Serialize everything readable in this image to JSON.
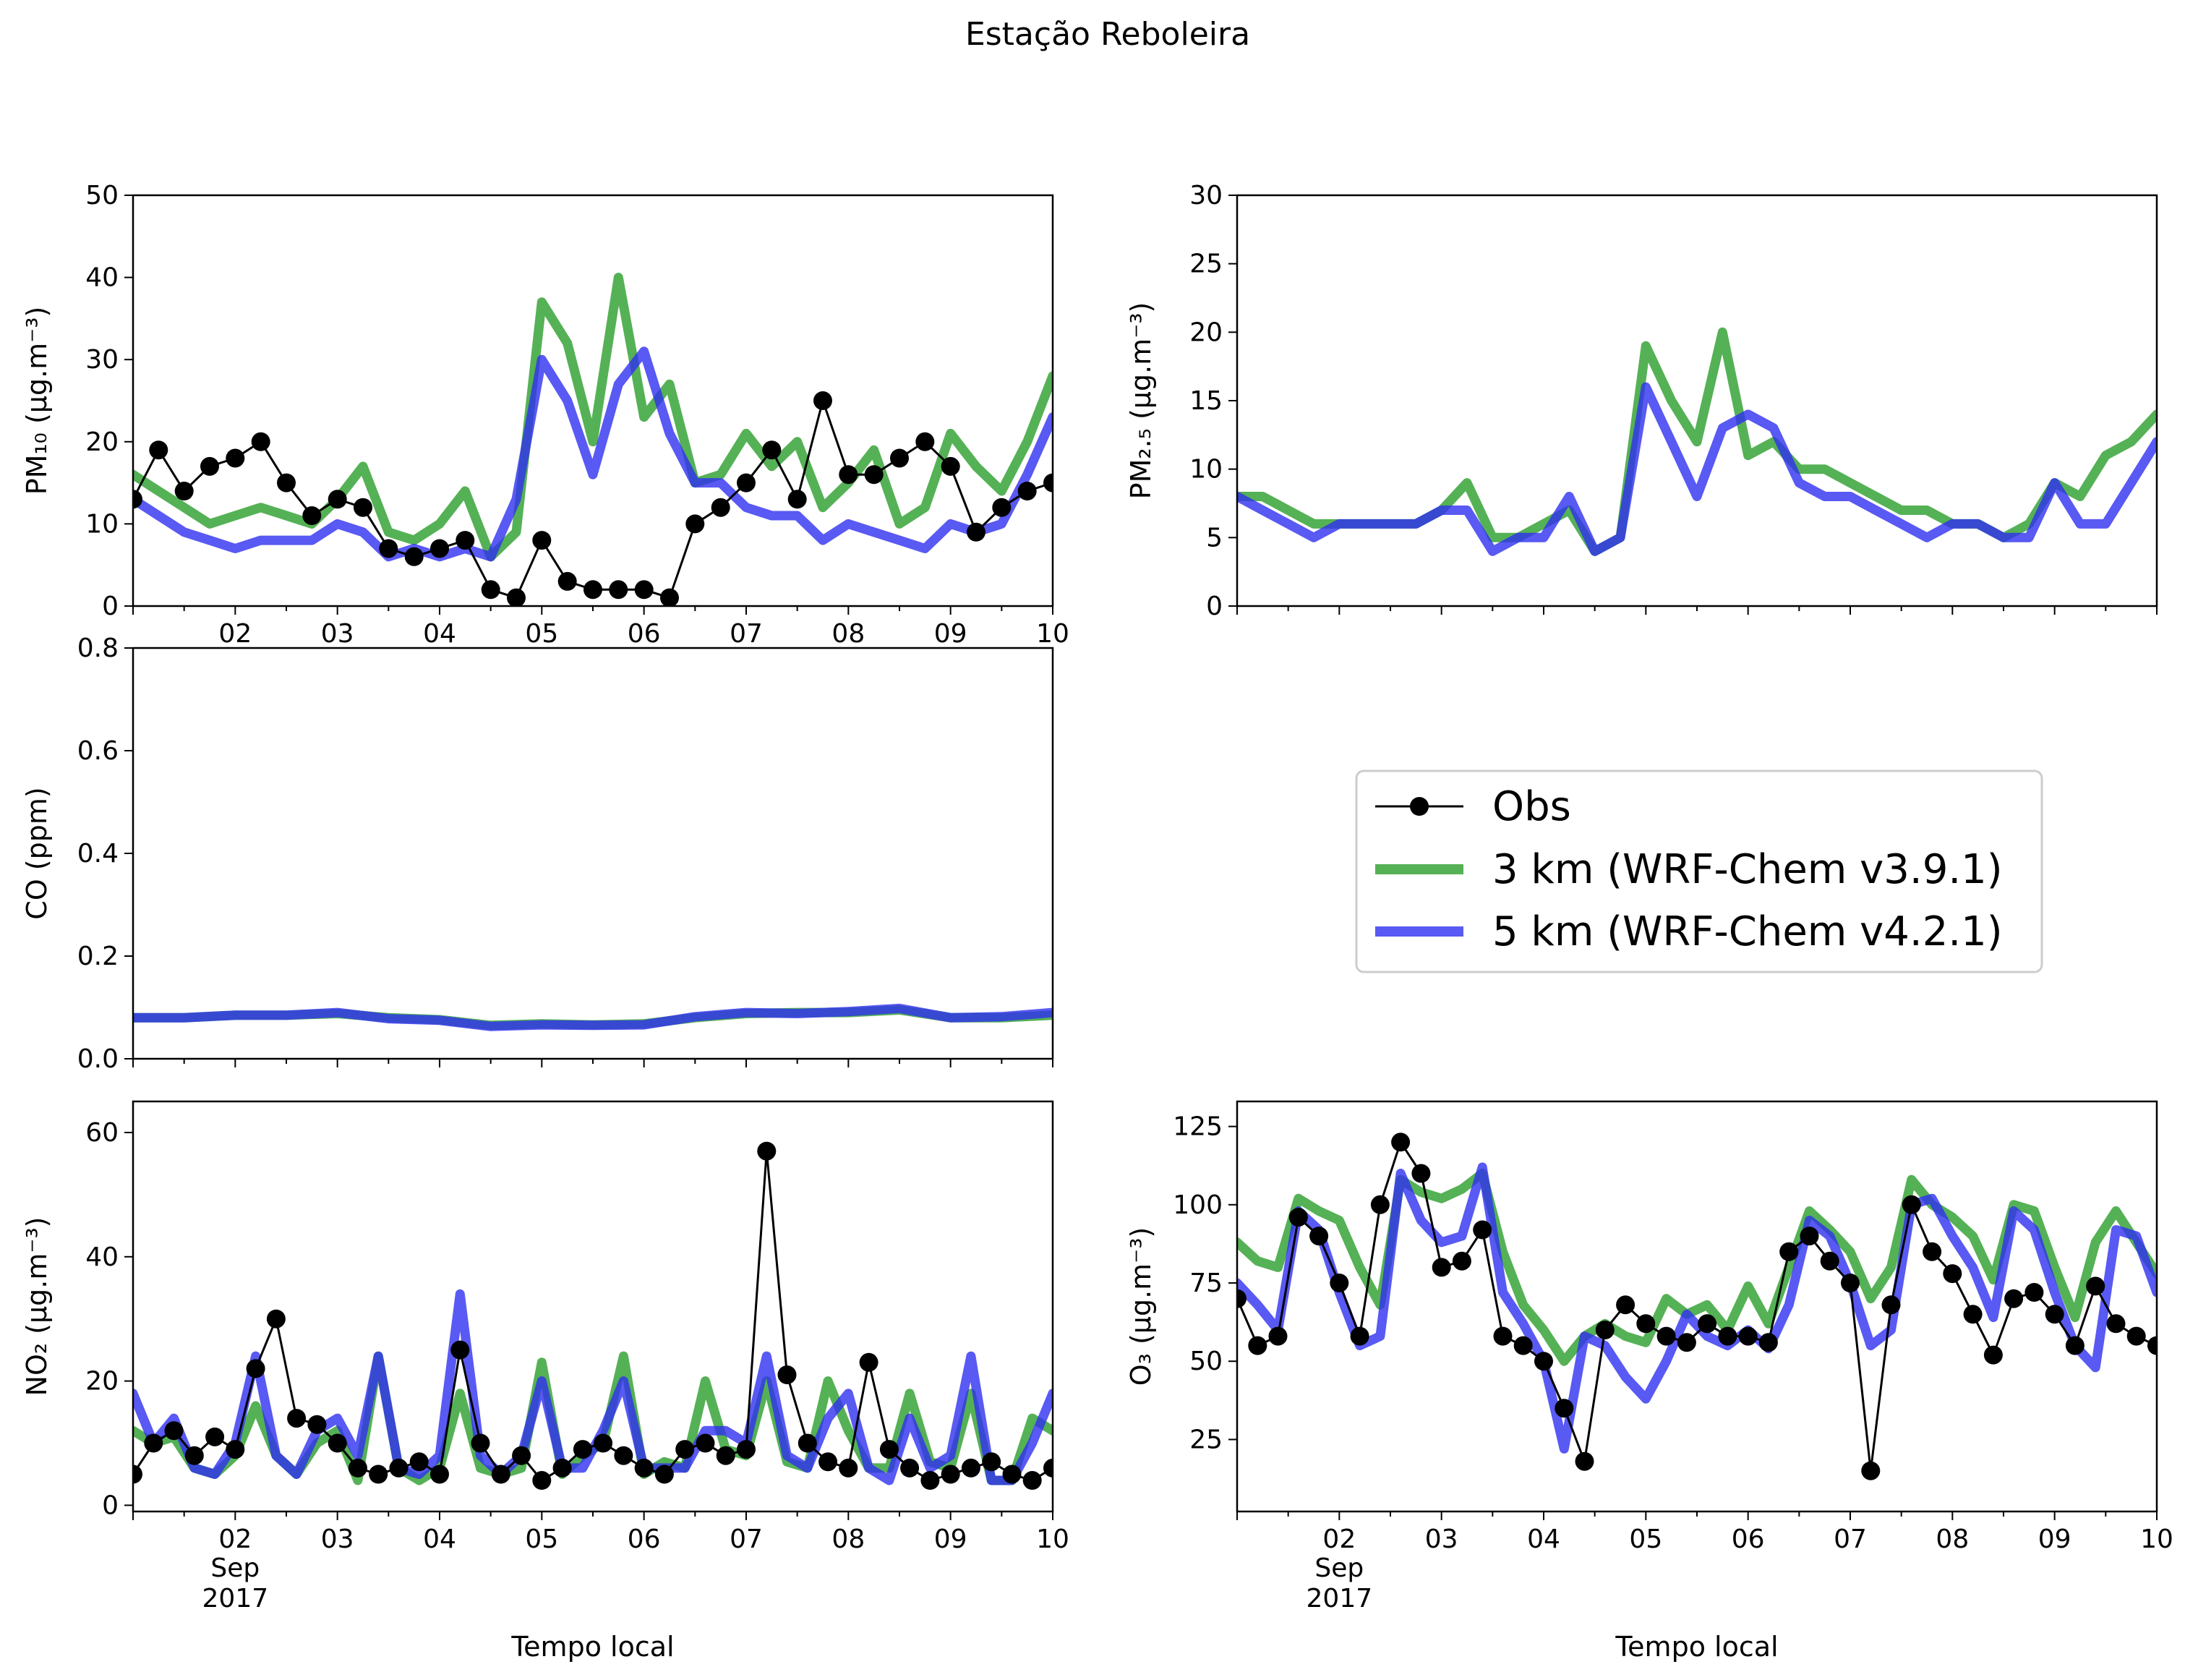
{
  "figure": {
    "suptitle": "Estação Reboleira",
    "colors": {
      "obs": "#000000",
      "m3": "#2a9d2a",
      "m5": "#3030f0",
      "frame": "#000000"
    }
  },
  "legend": {
    "entries": [
      {
        "label": "Obs",
        "style": "line-marker",
        "color": "#000000"
      },
      {
        "label": "3 km (WRF-Chem v3.9.1)",
        "style": "thick-line",
        "color": "#2a9d2a"
      },
      {
        "label": "5 km (WRF-Chem v4.2.1)",
        "style": "thick-line",
        "color": "#3030f0"
      }
    ]
  },
  "chart_data": [
    {
      "id": "pm10",
      "type": "line",
      "ylabel": "PM₁₀ (µg.m⁻³)",
      "ylim": [
        0,
        50
      ],
      "yticks": [
        0,
        10,
        20,
        30,
        40,
        50
      ],
      "xlim": [
        1,
        10
      ],
      "xticks": [
        "02",
        "03",
        "04",
        "05",
        "06",
        "07",
        "08",
        "09",
        "10"
      ],
      "xtick_values": [
        2,
        3,
        4,
        5,
        6,
        7,
        8,
        9,
        10
      ],
      "x": [
        1.0,
        1.25,
        1.5,
        1.75,
        2.0,
        2.25,
        2.5,
        2.75,
        3.0,
        3.25,
        3.5,
        3.75,
        4.0,
        4.25,
        4.5,
        4.75,
        5.0,
        5.25,
        5.5,
        5.75,
        6.0,
        6.25,
        6.5,
        6.75,
        7.0,
        7.25,
        7.5,
        7.75,
        8.0,
        8.25,
        8.5,
        8.75,
        9.0,
        9.25,
        9.5,
        9.75,
        10.0
      ],
      "series": [
        {
          "name": "3 km (WRF-Chem v3.9.1)",
          "color": "#2a9d2a",
          "values": [
            16,
            14,
            12,
            10,
            11,
            12,
            11,
            10,
            13,
            17,
            9,
            8,
            10,
            14,
            6,
            9,
            37,
            32,
            20,
            40,
            23,
            27,
            15,
            16,
            21,
            17,
            20,
            12,
            15,
            19,
            10,
            12,
            21,
            17,
            14,
            20,
            28
          ]
        },
        {
          "name": "5 km (WRF-Chem v4.2.1)",
          "color": "#3030f0",
          "values": [
            13,
            11,
            9,
            8,
            7,
            8,
            8,
            8,
            10,
            9,
            6,
            7,
            6,
            7,
            6,
            13,
            30,
            25,
            16,
            27,
            31,
            21,
            15,
            15,
            12,
            11,
            11,
            8,
            10,
            9,
            8,
            7,
            10,
            9,
            10,
            16,
            23
          ]
        }
      ],
      "obs": {
        "name": "Obs",
        "color": "#000000",
        "values": [
          13,
          19,
          14,
          17,
          18,
          20,
          15,
          11,
          13,
          12,
          7,
          6,
          7,
          8,
          2,
          1,
          8,
          3,
          2,
          2,
          2,
          1,
          10,
          12,
          15,
          19,
          13,
          25,
          16,
          16,
          18,
          20,
          17,
          9,
          12,
          14,
          15
        ]
      }
    },
    {
      "id": "pm25",
      "type": "line",
      "ylabel": "PM₂.₅ (µg.m⁻³)",
      "ylim": [
        0,
        30
      ],
      "yticks": [
        0,
        5,
        10,
        15,
        20,
        25,
        30
      ],
      "xlim": [
        1,
        10
      ],
      "xticks": [],
      "xtick_values": [
        2,
        3,
        4,
        5,
        6,
        7,
        8,
        9,
        10
      ],
      "x": [
        1.0,
        1.25,
        1.5,
        1.75,
        2.0,
        2.25,
        2.5,
        2.75,
        3.0,
        3.25,
        3.5,
        3.75,
        4.0,
        4.25,
        4.5,
        4.75,
        5.0,
        5.25,
        5.5,
        5.75,
        6.0,
        6.25,
        6.5,
        6.75,
        7.0,
        7.25,
        7.5,
        7.75,
        8.0,
        8.25,
        8.5,
        8.75,
        9.0,
        9.25,
        9.5,
        9.75,
        10.0
      ],
      "series": [
        {
          "name": "3 km (WRF-Chem v3.9.1)",
          "color": "#2a9d2a",
          "values": [
            8,
            8,
            7,
            6,
            6,
            6,
            6,
            6,
            7,
            9,
            5,
            5,
            6,
            7,
            4,
            5,
            19,
            15,
            12,
            20,
            11,
            12,
            10,
            10,
            9,
            8,
            7,
            7,
            6,
            6,
            5,
            6,
            9,
            8,
            11,
            12,
            14
          ]
        },
        {
          "name": "5 km (WRF-Chem v4.2.1)",
          "color": "#3030f0",
          "values": [
            8,
            7,
            6,
            5,
            6,
            6,
            6,
            6,
            7,
            7,
            4,
            5,
            5,
            8,
            4,
            5,
            16,
            12,
            8,
            13,
            14,
            13,
            9,
            8,
            8,
            7,
            6,
            5,
            6,
            6,
            5,
            5,
            9,
            6,
            6,
            9,
            12
          ]
        }
      ]
    },
    {
      "id": "co",
      "type": "line",
      "ylabel": "CO (ppm)",
      "ylim": [
        0.0,
        0.8
      ],
      "yticks": [
        0.0,
        0.2,
        0.4,
        0.6,
        0.8
      ],
      "xlim": [
        1,
        10
      ],
      "xticks": [],
      "xtick_values": [
        2,
        3,
        4,
        5,
        6,
        7,
        8,
        9,
        10
      ],
      "x": [
        1.0,
        1.5,
        2.0,
        2.5,
        3.0,
        3.5,
        4.0,
        4.5,
        5.0,
        5.5,
        6.0,
        6.5,
        7.0,
        7.5,
        8.0,
        8.5,
        9.0,
        9.5,
        10.0
      ],
      "series": [
        {
          "name": "3 km (WRF-Chem v3.9.1)",
          "color": "#2a9d2a",
          "values": [
            0.08,
            0.08,
            0.085,
            0.085,
            0.088,
            0.08,
            0.076,
            0.065,
            0.068,
            0.066,
            0.068,
            0.08,
            0.088,
            0.09,
            0.09,
            0.095,
            0.08,
            0.08,
            0.085
          ]
        },
        {
          "name": "5 km (WRF-Chem v4.2.1)",
          "color": "#3030f0",
          "values": [
            0.08,
            0.08,
            0.085,
            0.085,
            0.09,
            0.078,
            0.075,
            0.063,
            0.066,
            0.065,
            0.066,
            0.082,
            0.09,
            0.088,
            0.092,
            0.098,
            0.08,
            0.082,
            0.09
          ]
        }
      ]
    },
    {
      "id": "no2",
      "type": "line",
      "ylabel": "NO₂ (µg.m⁻³)",
      "ylim": [
        -1,
        65
      ],
      "yticks": [
        0,
        20,
        40,
        60
      ],
      "xlim": [
        1,
        10
      ],
      "xticks": [
        "02",
        "03",
        "04",
        "05",
        "06",
        "07",
        "08",
        "09",
        "10"
      ],
      "xtick_values": [
        2,
        3,
        4,
        5,
        6,
        7,
        8,
        9,
        10
      ],
      "xlabel": "Tempo local",
      "xlabel_sub1": "Sep",
      "xlabel_sub2": "2017",
      "x": [
        1.0,
        1.2,
        1.4,
        1.6,
        1.8,
        2.0,
        2.2,
        2.4,
        2.6,
        2.8,
        3.0,
        3.2,
        3.4,
        3.6,
        3.8,
        4.0,
        4.2,
        4.4,
        4.6,
        4.8,
        5.0,
        5.2,
        5.4,
        5.6,
        5.8,
        6.0,
        6.2,
        6.4,
        6.6,
        6.8,
        7.0,
        7.2,
        7.4,
        7.6,
        7.8,
        8.0,
        8.2,
        8.4,
        8.6,
        8.8,
        9.0,
        9.2,
        9.4,
        9.6,
        9.8,
        10.0
      ],
      "series": [
        {
          "name": "3 km (WRF-Chem v3.9.1)",
          "color": "#2a9d2a",
          "values": [
            12,
            10,
            11,
            6,
            5,
            8,
            16,
            8,
            5,
            10,
            12,
            4,
            24,
            6,
            4,
            6,
            18,
            6,
            5,
            6,
            23,
            5,
            8,
            10,
            24,
            5,
            7,
            6,
            20,
            9,
            8,
            20,
            7,
            6,
            20,
            12,
            6,
            6,
            18,
            7,
            6,
            18,
            4,
            4,
            14,
            12
          ]
        },
        {
          "name": "5 km (WRF-Chem v4.2.1)",
          "color": "#3030f0",
          "values": [
            18,
            10,
            14,
            6,
            5,
            10,
            24,
            8,
            5,
            12,
            14,
            8,
            24,
            6,
            5,
            8,
            34,
            8,
            5,
            8,
            20,
            6,
            6,
            12,
            20,
            6,
            6,
            6,
            12,
            12,
            10,
            24,
            8,
            6,
            14,
            18,
            6,
            4,
            14,
            6,
            8,
            24,
            4,
            4,
            10,
            18
          ]
        }
      ],
      "obs": {
        "name": "Obs",
        "color": "#000000",
        "values": [
          5,
          10,
          12,
          8,
          11,
          9,
          22,
          30,
          14,
          13,
          10,
          6,
          5,
          6,
          7,
          5,
          25,
          10,
          5,
          8,
          4,
          6,
          9,
          10,
          8,
          6,
          5,
          9,
          10,
          8,
          9,
          57,
          21,
          10,
          7,
          6,
          23,
          9,
          6,
          4,
          5,
          6,
          7,
          5,
          4,
          6
        ]
      }
    },
    {
      "id": "o3",
      "type": "line",
      "ylabel": "O₃ (µg.m⁻³)",
      "ylim": [
        2,
        133
      ],
      "yticks": [
        25,
        50,
        75,
        100,
        125
      ],
      "xlim": [
        1,
        10
      ],
      "xticks": [
        "02",
        "03",
        "04",
        "05",
        "06",
        "07",
        "08",
        "09",
        "10"
      ],
      "xtick_values": [
        2,
        3,
        4,
        5,
        6,
        7,
        8,
        9,
        10
      ],
      "xlabel": "Tempo local",
      "xlabel_sub1": "Sep",
      "xlabel_sub2": "2017",
      "x": [
        1.0,
        1.2,
        1.4,
        1.6,
        1.8,
        2.0,
        2.2,
        2.4,
        2.6,
        2.8,
        3.0,
        3.2,
        3.4,
        3.6,
        3.8,
        4.0,
        4.2,
        4.4,
        4.6,
        4.8,
        5.0,
        5.2,
        5.4,
        5.6,
        5.8,
        6.0,
        6.2,
        6.4,
        6.6,
        6.8,
        7.0,
        7.2,
        7.4,
        7.6,
        7.8,
        8.0,
        8.2,
        8.4,
        8.6,
        8.8,
        9.0,
        9.2,
        9.4,
        9.6,
        9.8,
        10.0
      ],
      "series": [
        {
          "name": "3 km (WRF-Chem v3.9.1)",
          "color": "#2a9d2a",
          "values": [
            88,
            82,
            80,
            102,
            98,
            95,
            80,
            68,
            108,
            104,
            102,
            105,
            110,
            85,
            68,
            60,
            50,
            58,
            62,
            58,
            56,
            70,
            65,
            68,
            60,
            74,
            62,
            80,
            98,
            92,
            85,
            70,
            80,
            108,
            100,
            96,
            90,
            76,
            100,
            98,
            80,
            64,
            88,
            98,
            88,
            78
          ]
        },
        {
          "name": "5 km (WRF-Chem v4.2.1)",
          "color": "#3030f0",
          "values": [
            75,
            68,
            60,
            98,
            92,
            72,
            55,
            58,
            110,
            95,
            88,
            90,
            112,
            72,
            62,
            50,
            22,
            58,
            55,
            45,
            38,
            50,
            65,
            58,
            55,
            60,
            54,
            68,
            95,
            90,
            75,
            55,
            60,
            100,
            102,
            90,
            80,
            64,
            98,
            92,
            72,
            55,
            48,
            92,
            90,
            72
          ]
        }
      ],
      "obs": {
        "name": "Obs",
        "color": "#000000",
        "values": [
          70,
          55,
          58,
          96,
          90,
          75,
          58,
          100,
          120,
          110,
          80,
          82,
          92,
          58,
          55,
          50,
          35,
          18,
          60,
          68,
          62,
          58,
          56,
          62,
          58,
          58,
          56,
          85,
          90,
          82,
          75,
          15,
          68,
          100,
          85,
          78,
          65,
          52,
          70,
          72,
          65,
          55,
          74,
          62,
          58,
          55
        ]
      }
    }
  ]
}
